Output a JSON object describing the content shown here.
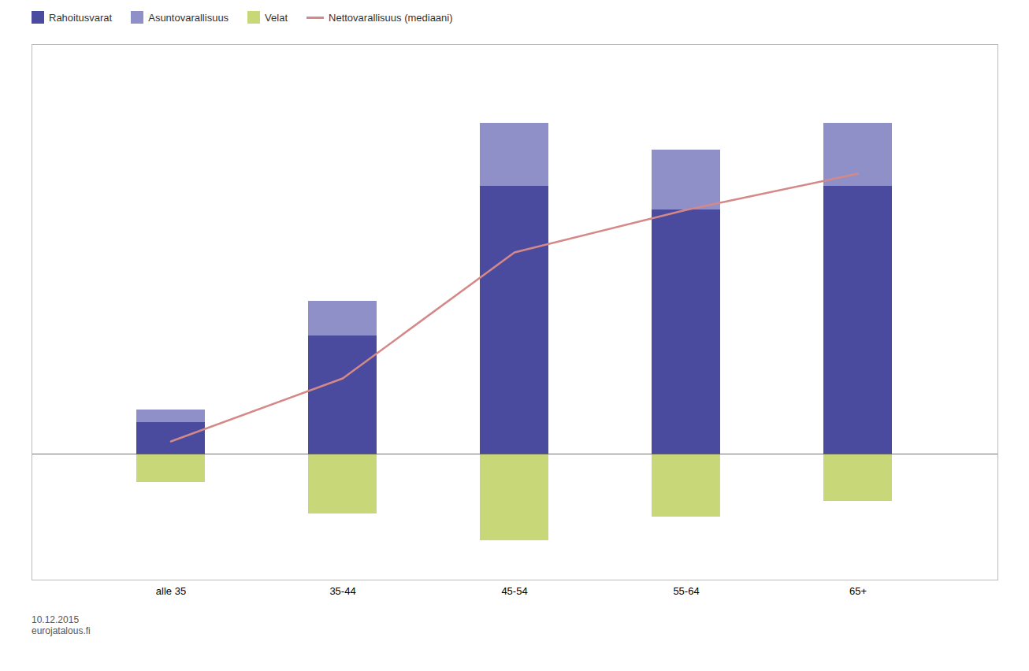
{
  "chart_data": {
    "type": "bar",
    "stacked": true,
    "categories": [
      "alle 35",
      "35-44",
      "45-54",
      "55-64",
      "65+"
    ],
    "series": [
      {
        "name": "Rahoitusvarat",
        "color": "#4a4b9e",
        "values": [
          20,
          75,
          170,
          155,
          170
        ]
      },
      {
        "name": "Asuntovarallisuus",
        "color": "#9090c8",
        "values": [
          8,
          22,
          40,
          38,
          40
        ]
      },
      {
        "name": "Velat",
        "color": "#c8d878",
        "values": [
          -18,
          -38,
          -55,
          -40,
          -30
        ]
      },
      {
        "name": "Nettovarallisuus (mediaani)",
        "type": "line",
        "color": "#d48888",
        "values": [
          8,
          48,
          128,
          155,
          178
        ]
      }
    ],
    "ylim": [
      -80,
      260
    ],
    "tick_labels": "x",
    "legend": "upper left",
    "caption": "10.12.2015\neurojatalous.fi"
  }
}
